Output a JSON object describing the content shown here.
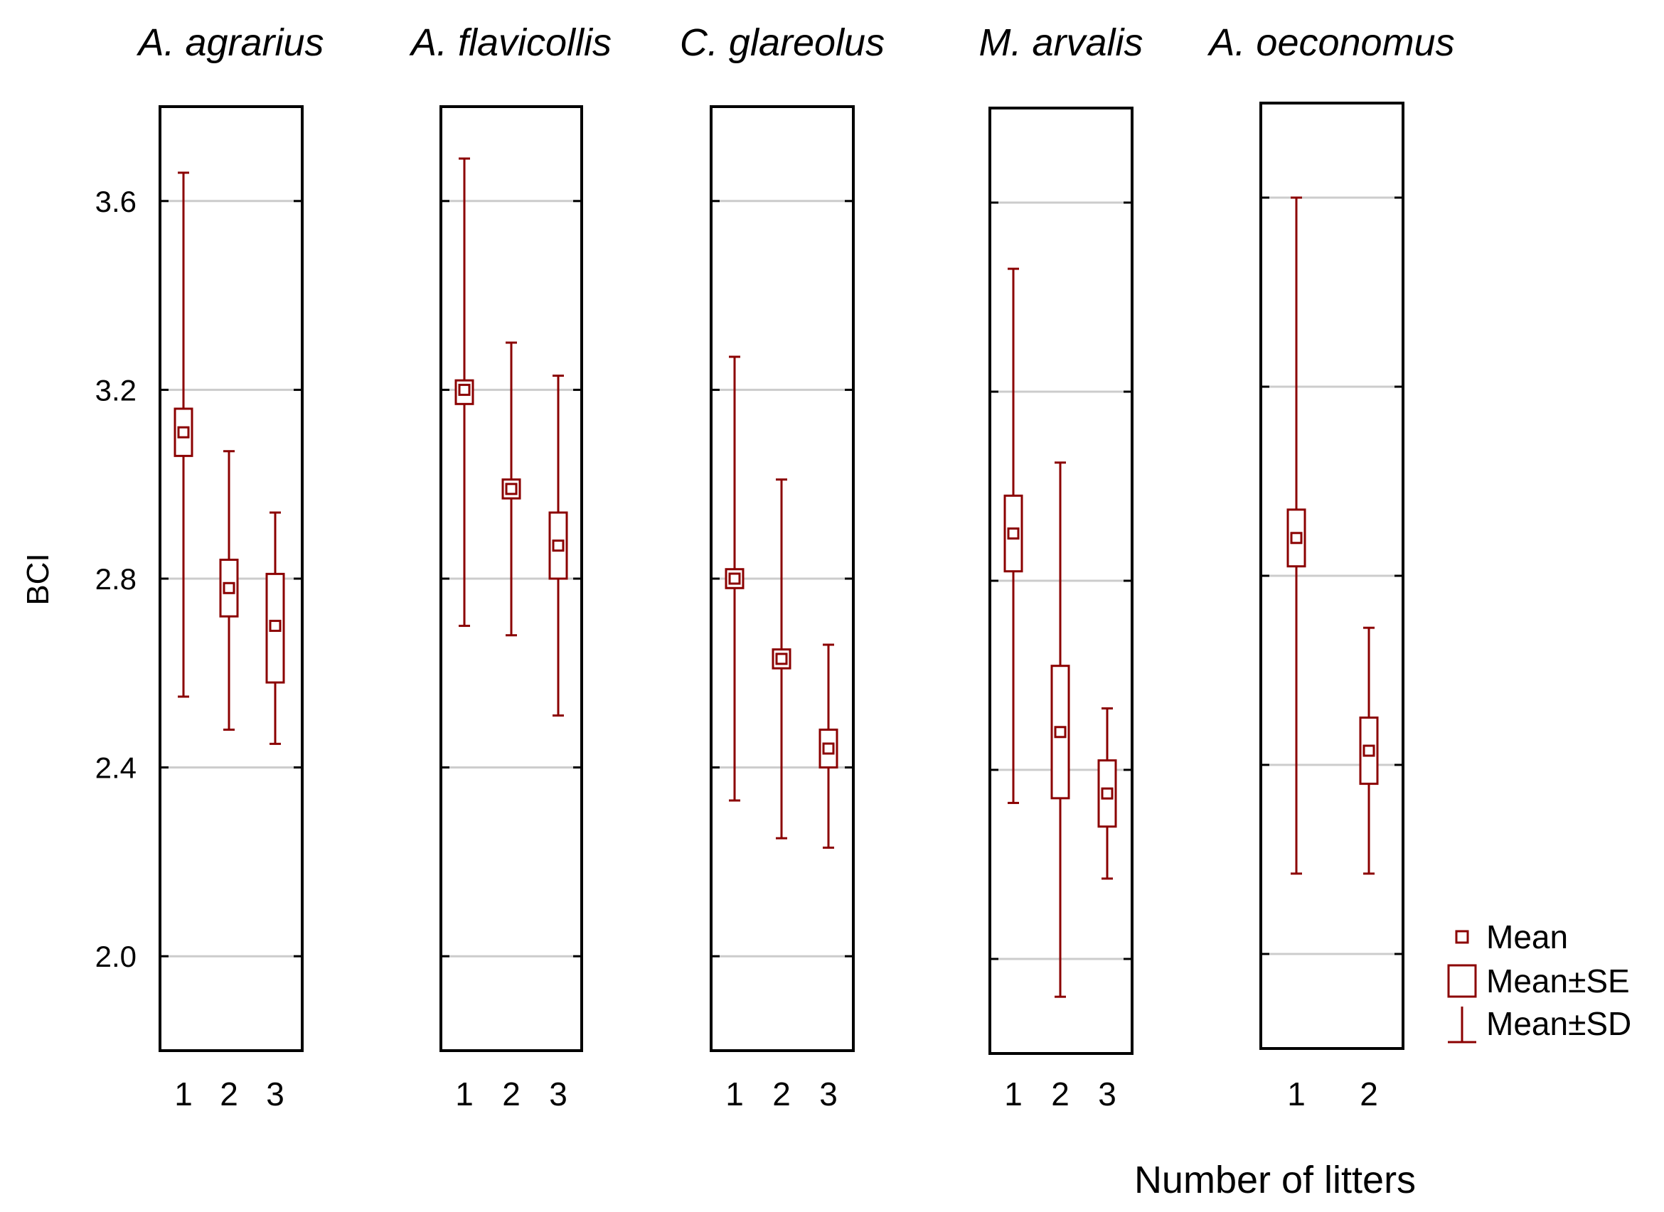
{
  "chart_data": {
    "type": "box",
    "ylabel": "BCI",
    "xlabel": "Number of litters",
    "ylim": [
      1.8,
      3.8
    ],
    "yticks": [
      2.0,
      2.4,
      2.8,
      3.2,
      3.6
    ],
    "ytick_labels": [
      "2.0",
      "2.4",
      "2.8",
      "3.2",
      "3.6"
    ],
    "grid": true,
    "legend": {
      "position": "bottom-right",
      "items": [
        {
          "label": "Mean",
          "marker": "small-square"
        },
        {
          "label": "Mean±SE",
          "marker": "box"
        },
        {
          "label": "Mean±SD",
          "marker": "whisker"
        }
      ]
    },
    "series_color": "#8b0000",
    "panels": [
      {
        "title": "A. agrarius",
        "categories": [
          "1",
          "2",
          "3"
        ],
        "groups": [
          {
            "x": "1",
            "mean": 3.11,
            "se_low": 3.06,
            "se_high": 3.16,
            "sd_low": 2.55,
            "sd_high": 3.66
          },
          {
            "x": "2",
            "mean": 2.78,
            "se_low": 2.72,
            "se_high": 2.84,
            "sd_low": 2.48,
            "sd_high": 3.07
          },
          {
            "x": "3",
            "mean": 2.7,
            "se_low": 2.58,
            "se_high": 2.81,
            "sd_low": 2.45,
            "sd_high": 2.94
          }
        ]
      },
      {
        "title": "A. flavicollis",
        "categories": [
          "1",
          "2",
          "3"
        ],
        "groups": [
          {
            "x": "1",
            "mean": 3.2,
            "se_low": 3.17,
            "se_high": 3.22,
            "sd_low": 2.7,
            "sd_high": 3.69
          },
          {
            "x": "2",
            "mean": 2.99,
            "se_low": 2.97,
            "se_high": 3.01,
            "sd_low": 2.68,
            "sd_high": 3.3
          },
          {
            "x": "3",
            "mean": 2.87,
            "se_low": 2.8,
            "se_high": 2.94,
            "sd_low": 2.51,
            "sd_high": 3.23
          }
        ]
      },
      {
        "title": "C. glareolus",
        "categories": [
          "1",
          "2",
          "3"
        ],
        "groups": [
          {
            "x": "1",
            "mean": 2.8,
            "se_low": 2.78,
            "se_high": 2.82,
            "sd_low": 2.33,
            "sd_high": 3.27
          },
          {
            "x": "2",
            "mean": 2.63,
            "se_low": 2.61,
            "se_high": 2.65,
            "sd_low": 2.25,
            "sd_high": 3.01
          },
          {
            "x": "3",
            "mean": 2.44,
            "se_low": 2.4,
            "se_high": 2.48,
            "sd_low": 2.23,
            "sd_high": 2.66
          }
        ]
      },
      {
        "title": "M. arvalis",
        "categories": [
          "1",
          "2",
          "3"
        ],
        "groups": [
          {
            "x": "1",
            "mean": 2.9,
            "se_low": 2.82,
            "se_high": 2.98,
            "sd_low": 2.33,
            "sd_high": 3.46
          },
          {
            "x": "2",
            "mean": 2.48,
            "se_low": 2.34,
            "se_high": 2.62,
            "sd_low": 1.92,
            "sd_high": 3.05
          },
          {
            "x": "3",
            "mean": 2.35,
            "se_low": 2.28,
            "se_high": 2.42,
            "sd_low": 2.17,
            "sd_high": 2.53
          }
        ]
      },
      {
        "title": "A. oeconomus",
        "categories": [
          "1",
          "2"
        ],
        "groups": [
          {
            "x": "1",
            "mean": 2.88,
            "se_low": 2.82,
            "se_high": 2.94,
            "sd_low": 2.17,
            "sd_high": 3.6
          },
          {
            "x": "2",
            "mean": 2.43,
            "se_low": 2.36,
            "se_high": 2.5,
            "sd_low": 2.17,
            "sd_high": 2.69
          }
        ]
      }
    ]
  }
}
